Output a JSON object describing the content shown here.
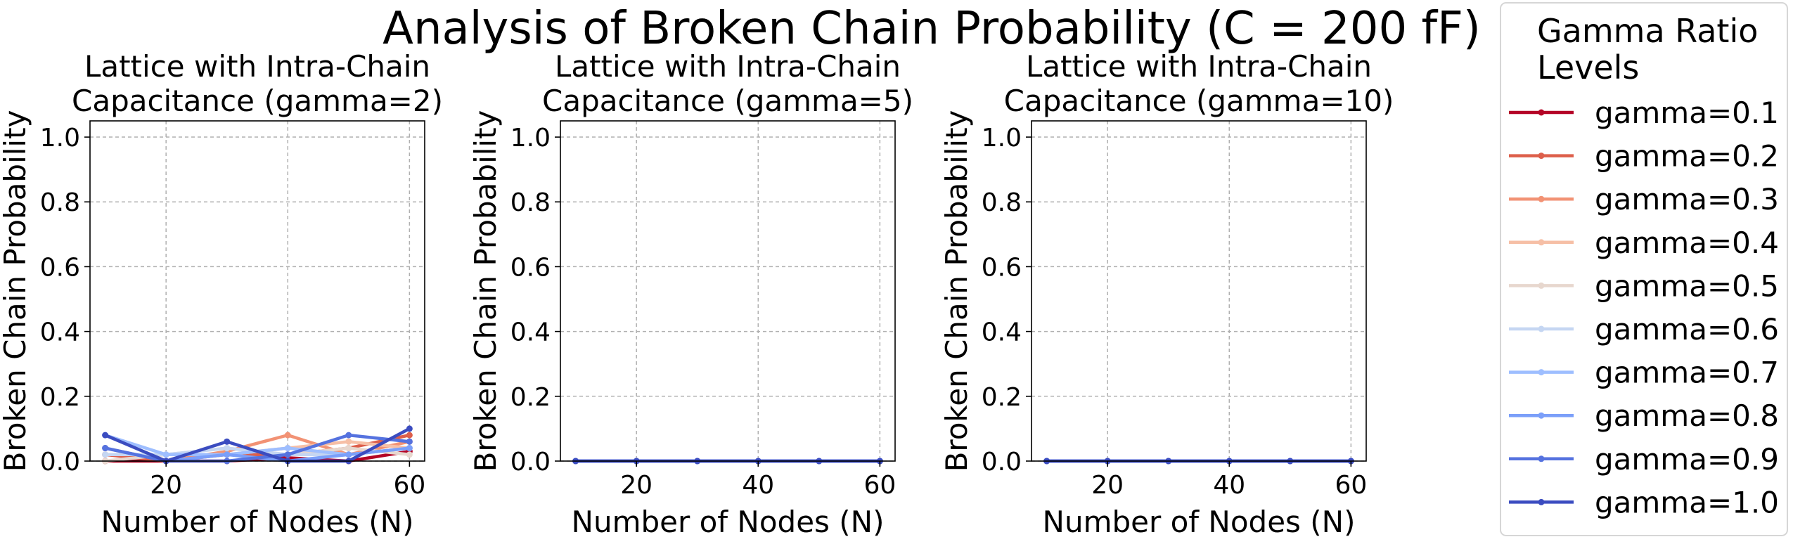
{
  "figure_title": "Analysis of Broken Chain Probability (C = 200 fF)",
  "legend": {
    "title_line1": "Gamma Ratio",
    "title_line2": "Levels",
    "placement": "right, outside plots"
  },
  "chart_data": [
    {
      "type": "line",
      "title_line1": "Lattice with Intra-Chain",
      "title_line2": "Capacitance (gamma=2)",
      "xlabel": "Number of Nodes (N)",
      "ylabel": "Broken Chain Probability",
      "xlim": [
        7.5,
        62.5
      ],
      "ylim": [
        0,
        1.05
      ],
      "x_ticks": [
        20,
        40,
        60
      ],
      "y_ticks": [
        0.0,
        0.2,
        0.4,
        0.6,
        0.8,
        1.0
      ],
      "grid": true,
      "x": [
        10,
        20,
        30,
        40,
        50,
        60
      ],
      "series": [
        {
          "name": "gamma=0.1",
          "color": "#b40426",
          "values": [
            0.0,
            0.0,
            0.0,
            0.01,
            0.0,
            0.03
          ]
        },
        {
          "name": "gamma=0.2",
          "color": "#dd5f4b",
          "values": [
            0.02,
            0.0,
            0.02,
            0.02,
            0.04,
            0.08
          ]
        },
        {
          "name": "gamma=0.3",
          "color": "#f29274",
          "values": [
            0.04,
            0.0,
            0.03,
            0.08,
            0.02,
            0.06
          ]
        },
        {
          "name": "gamma=0.4",
          "color": "#f6bfa6",
          "values": [
            0.02,
            0.02,
            0.02,
            0.04,
            0.06,
            0.04
          ]
        },
        {
          "name": "gamma=0.5",
          "color": "#e7d7ce",
          "values": [
            0.0,
            0.02,
            0.04,
            0.02,
            0.04,
            0.02
          ]
        },
        {
          "name": "gamma=0.6",
          "color": "#c5d6f2",
          "values": [
            0.02,
            0.02,
            0.04,
            0.02,
            0.02,
            0.04
          ]
        },
        {
          "name": "gamma=0.7",
          "color": "#9ebeff",
          "values": [
            0.08,
            0.02,
            0.02,
            0.04,
            0.02,
            0.04
          ]
        },
        {
          "name": "gamma=0.8",
          "color": "#7b9ff9",
          "values": [
            0.04,
            0.0,
            0.02,
            0.0,
            0.02,
            0.04
          ]
        },
        {
          "name": "gamma=0.9",
          "color": "#5572df",
          "values": [
            0.04,
            0.0,
            0.0,
            0.02,
            0.08,
            0.06
          ]
        },
        {
          "name": "gamma=1.0",
          "color": "#3b4cc0",
          "values": [
            0.08,
            0.0,
            0.06,
            0.0,
            0.0,
            0.1
          ]
        }
      ]
    },
    {
      "type": "line",
      "title_line1": "Lattice with Intra-Chain",
      "title_line2": "Capacitance (gamma=5)",
      "xlabel": "Number of Nodes (N)",
      "ylabel": "Broken Chain Probability",
      "xlim": [
        7.5,
        62.5
      ],
      "ylim": [
        0,
        1.05
      ],
      "x_ticks": [
        20,
        40,
        60
      ],
      "y_ticks": [
        0.0,
        0.2,
        0.4,
        0.6,
        0.8,
        1.0
      ],
      "grid": true,
      "x": [
        10,
        20,
        30,
        40,
        50,
        60
      ],
      "series": [
        {
          "name": "gamma=0.1",
          "color": "#b40426",
          "values": [
            0,
            0,
            0,
            0,
            0,
            0
          ]
        },
        {
          "name": "gamma=0.2",
          "color": "#dd5f4b",
          "values": [
            0,
            0,
            0,
            0,
            0,
            0
          ]
        },
        {
          "name": "gamma=0.3",
          "color": "#f29274",
          "values": [
            0,
            0,
            0,
            0,
            0,
            0
          ]
        },
        {
          "name": "gamma=0.4",
          "color": "#f6bfa6",
          "values": [
            0,
            0,
            0,
            0,
            0,
            0
          ]
        },
        {
          "name": "gamma=0.5",
          "color": "#e7d7ce",
          "values": [
            0,
            0,
            0,
            0,
            0,
            0
          ]
        },
        {
          "name": "gamma=0.6",
          "color": "#c5d6f2",
          "values": [
            0,
            0,
            0,
            0,
            0,
            0
          ]
        },
        {
          "name": "gamma=0.7",
          "color": "#9ebeff",
          "values": [
            0,
            0,
            0,
            0,
            0,
            0
          ]
        },
        {
          "name": "gamma=0.8",
          "color": "#7b9ff9",
          "values": [
            0,
            0,
            0,
            0,
            0,
            0
          ]
        },
        {
          "name": "gamma=0.9",
          "color": "#5572df",
          "values": [
            0,
            0,
            0,
            0,
            0,
            0
          ]
        },
        {
          "name": "gamma=1.0",
          "color": "#3b4cc0",
          "values": [
            0,
            0,
            0,
            0,
            0,
            0
          ]
        }
      ]
    },
    {
      "type": "line",
      "title_line1": "Lattice with Intra-Chain",
      "title_line2": "Capacitance (gamma=10)",
      "xlabel": "Number of Nodes (N)",
      "ylabel": "Broken Chain Probability",
      "xlim": [
        7.5,
        62.5
      ],
      "ylim": [
        0,
        1.05
      ],
      "x_ticks": [
        20,
        40,
        60
      ],
      "y_ticks": [
        0.0,
        0.2,
        0.4,
        0.6,
        0.8,
        1.0
      ],
      "grid": true,
      "x": [
        10,
        20,
        30,
        40,
        50,
        60
      ],
      "series": [
        {
          "name": "gamma=0.1",
          "color": "#b40426",
          "values": [
            0,
            0,
            0,
            0,
            0,
            0
          ]
        },
        {
          "name": "gamma=0.2",
          "color": "#dd5f4b",
          "values": [
            0,
            0,
            0,
            0,
            0,
            0
          ]
        },
        {
          "name": "gamma=0.3",
          "color": "#f29274",
          "values": [
            0,
            0,
            0,
            0,
            0,
            0
          ]
        },
        {
          "name": "gamma=0.4",
          "color": "#f6bfa6",
          "values": [
            0,
            0,
            0,
            0,
            0,
            0
          ]
        },
        {
          "name": "gamma=0.5",
          "color": "#e7d7ce",
          "values": [
            0,
            0,
            0,
            0,
            0,
            0
          ]
        },
        {
          "name": "gamma=0.6",
          "color": "#c5d6f2",
          "values": [
            0,
            0,
            0,
            0,
            0,
            0
          ]
        },
        {
          "name": "gamma=0.7",
          "color": "#9ebeff",
          "values": [
            0,
            0,
            0,
            0,
            0,
            0
          ]
        },
        {
          "name": "gamma=0.8",
          "color": "#7b9ff9",
          "values": [
            0,
            0,
            0,
            0,
            0,
            0
          ]
        },
        {
          "name": "gamma=0.9",
          "color": "#5572df",
          "values": [
            0,
            0,
            0,
            0,
            0,
            0
          ]
        },
        {
          "name": "gamma=1.0",
          "color": "#3b4cc0",
          "values": [
            0,
            0,
            0,
            0,
            0,
            0
          ]
        }
      ]
    }
  ]
}
